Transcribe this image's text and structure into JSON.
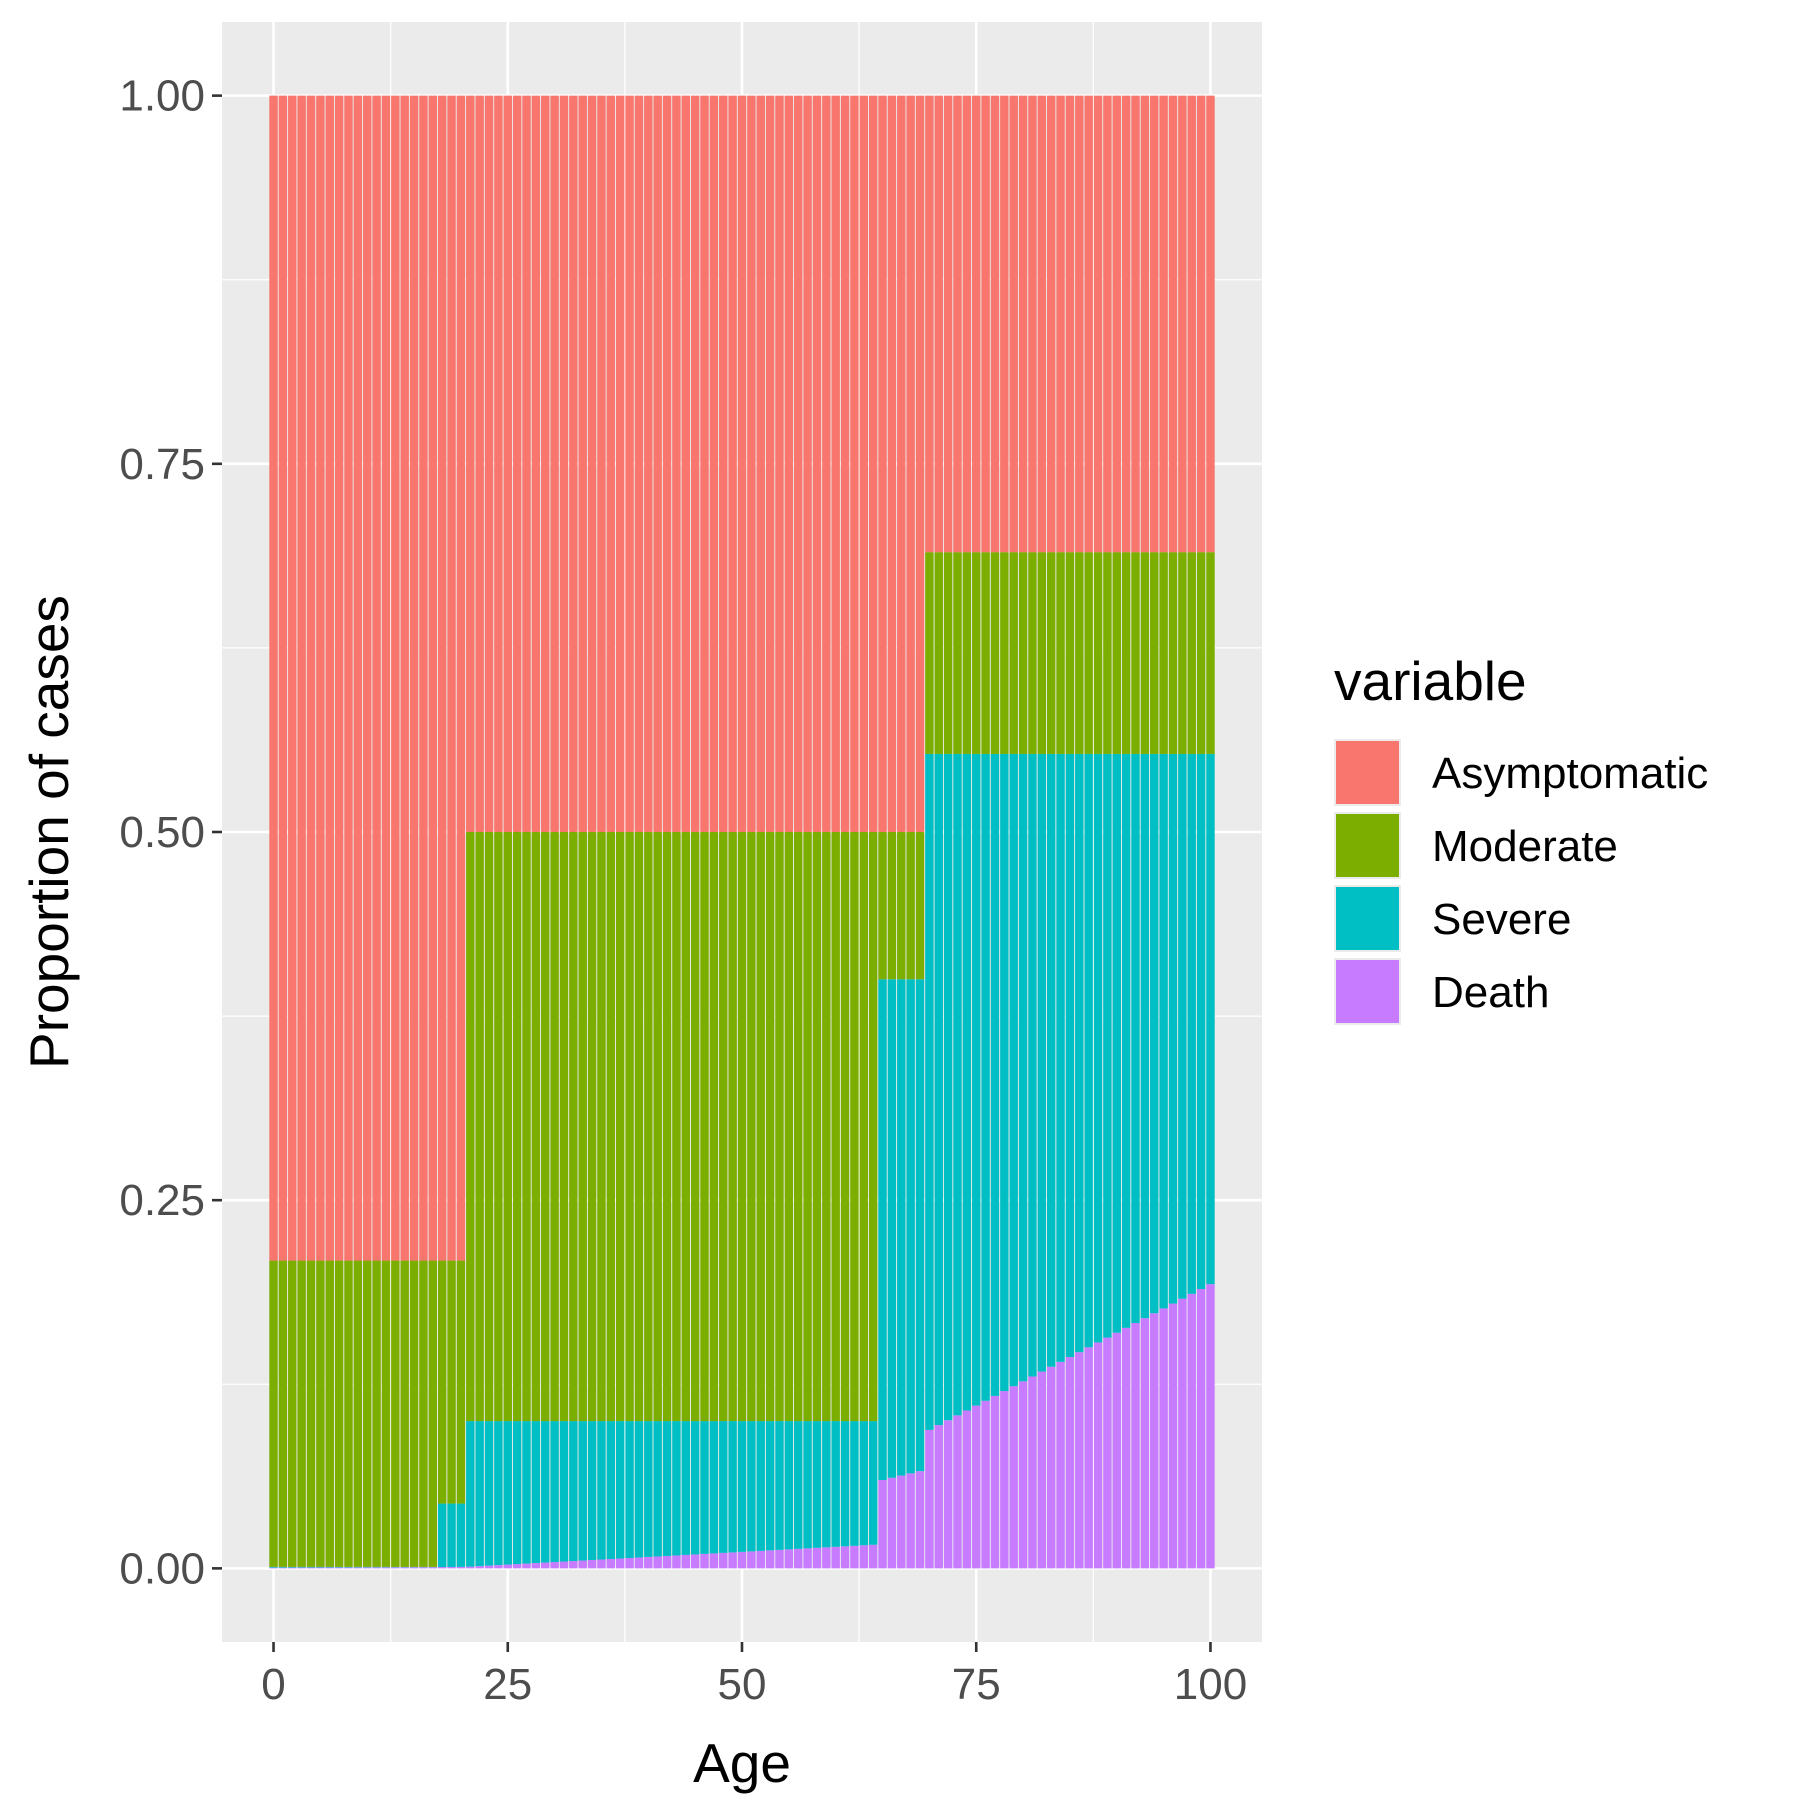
{
  "chart_data": {
    "type": "bar",
    "stacked": true,
    "xlabel": "Age",
    "ylabel": "Proportion of cases",
    "xlim": [
      -5.5,
      105.5
    ],
    "ylim": [
      -0.05,
      1.05
    ],
    "x_ticks": [
      0,
      25,
      50,
      75,
      100
    ],
    "x_tick_labels": [
      "0",
      "25",
      "50",
      "75",
      "100"
    ],
    "y_ticks": [
      0,
      0.25,
      0.5,
      0.75,
      1.0
    ],
    "y_tick_labels": [
      "0.00",
      "0.25",
      "0.50",
      "0.75",
      "1.00"
    ],
    "grid": true,
    "legend": {
      "title": "variable",
      "position": "right",
      "entries": [
        "Asymptomatic",
        "Moderate",
        "Severe",
        "Death"
      ]
    },
    "colors": {
      "Asymptomatic": "#F8766D",
      "Moderate": "#7CAE00",
      "Severe": "#00BFC4",
      "Death": "#C77CFF",
      "panel": "#EBEBEB",
      "gridline": "#FFFFFF"
    },
    "stack_order": [
      "Death",
      "Severe",
      "Moderate",
      "Asymptomatic"
    ],
    "age_groups": [
      {
        "from": 0,
        "to": 17,
        "death": [
          0.0005,
          0.0008
        ],
        "severe": [
          0.001,
          0.001
        ],
        "moderate": [
          0.209,
          0.209
        ],
        "asymptomatic": [
          0.791,
          0.791
        ]
      },
      {
        "from": 18,
        "to": 20,
        "death": [
          0.0009,
          0.001
        ],
        "severe": [
          0.044,
          0.044
        ],
        "moderate": [
          0.209,
          0.209
        ],
        "asymptomatic": [
          0.791,
          0.791
        ]
      },
      {
        "from": 21,
        "to": 64,
        "death": [
          0.0012,
          0.016
        ],
        "severe": [
          0.1,
          0.1
        ],
        "moderate": [
          0.5,
          0.5
        ],
        "asymptomatic": [
          0.5,
          0.5
        ]
      },
      {
        "from": 65,
        "to": 69,
        "death": [
          0.06,
          0.066
        ],
        "severe": [
          0.4,
          0.4
        ],
        "moderate": [
          0.5,
          0.5
        ],
        "asymptomatic": [
          0.5,
          0.5
        ]
      },
      {
        "from": 70,
        "to": 100,
        "death": [
          0.094,
          0.193
        ],
        "severe": [
          0.553,
          0.553
        ],
        "moderate": [
          0.69,
          0.69
        ],
        "asymptomatic": [
          0.31,
          0.31
        ]
      }
    ]
  }
}
